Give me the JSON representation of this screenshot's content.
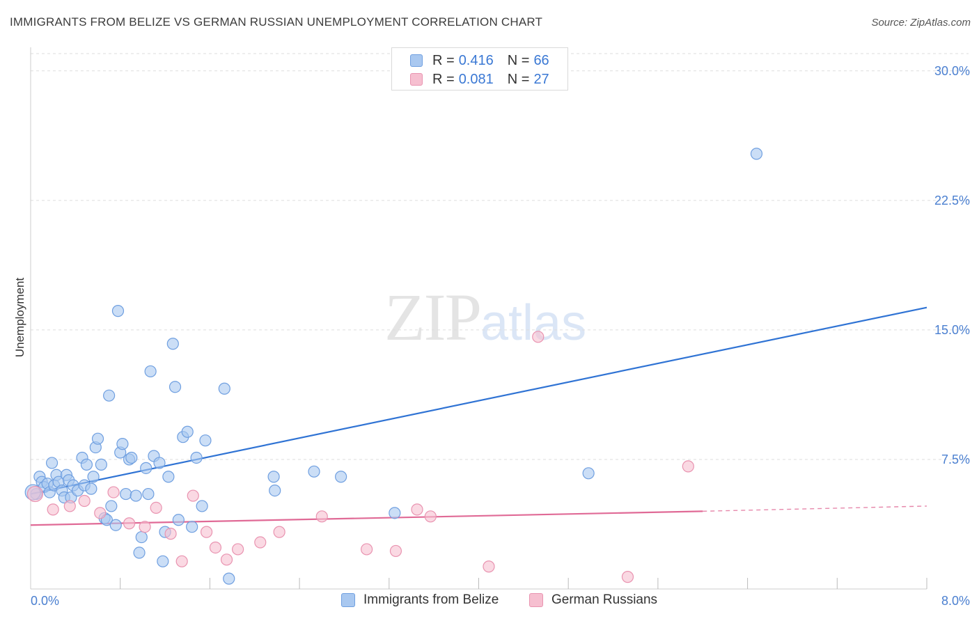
{
  "title": "IMMIGRANTS FROM BELIZE VS GERMAN RUSSIAN UNEMPLOYMENT CORRELATION CHART",
  "source": "Source: ZipAtlas.com",
  "watermark": {
    "zip": "ZIP",
    "atlas": "atlas"
  },
  "colors": {
    "blue_fill": "#a9c8f0",
    "blue_stroke": "#6f9fe0",
    "blue_line": "#2f73d4",
    "pink_fill": "#f6bfd0",
    "pink_stroke": "#e993b0",
    "pink_line": "#e06a96",
    "axis_text": "#4a7fd0",
    "grid": "#dddddd"
  },
  "legend": {
    "rows": [
      {
        "r_label": "R =",
        "r_value": "0.416",
        "n_label": "N =",
        "n_value": "66",
        "color": "blue"
      },
      {
        "r_label": "R =",
        "r_value": "0.081",
        "n_label": "N =",
        "n_value": "27",
        "color": "pink"
      }
    ]
  },
  "bottom_legend": [
    "Immigrants from Belize",
    "German Russians"
  ],
  "chart_data": {
    "type": "scatter",
    "title": "IMMIGRANTS FROM BELIZE VS GERMAN RUSSIAN UNEMPLOYMENT CORRELATION CHART",
    "xlabel": "",
    "ylabel": "Unemployment",
    "xlim": [
      0,
      8.0
    ],
    "ylim": [
      0,
      31
    ],
    "x_tick_labels": [
      "0.0%",
      "8.0%"
    ],
    "y_ticks": [
      7.5,
      15.0,
      22.5,
      30.0
    ],
    "y_tick_labels": [
      "7.5%",
      "15.0%",
      "22.5%",
      "30.0%"
    ],
    "grid": true,
    "series": [
      {
        "name": "Immigrants from Belize",
        "color": "blue",
        "r": 0.416,
        "n": 66,
        "trend": {
          "x0": 0.0,
          "y0": 5.5,
          "x1": 8.0,
          "y1": 16.3
        },
        "points": [
          [
            0.05,
            5.5
          ],
          [
            0.08,
            6.5
          ],
          [
            0.1,
            6.2
          ],
          [
            0.12,
            5.9
          ],
          [
            0.15,
            6.1
          ],
          [
            0.17,
            5.6
          ],
          [
            0.19,
            7.3
          ],
          [
            0.21,
            6.0
          ],
          [
            0.23,
            6.6
          ],
          [
            0.25,
            6.2
          ],
          [
            0.28,
            5.7
          ],
          [
            0.3,
            5.3
          ],
          [
            0.32,
            6.6
          ],
          [
            0.34,
            6.3
          ],
          [
            0.36,
            5.3
          ],
          [
            0.38,
            6.0
          ],
          [
            0.42,
            5.7
          ],
          [
            0.46,
            7.6
          ],
          [
            0.48,
            6.0
          ],
          [
            0.5,
            7.2
          ],
          [
            0.54,
            5.8
          ],
          [
            0.56,
            6.5
          ],
          [
            0.58,
            8.2
          ],
          [
            0.6,
            8.7
          ],
          [
            0.63,
            7.2
          ],
          [
            0.66,
            4.1
          ],
          [
            0.68,
            4.0
          ],
          [
            0.7,
            11.2
          ],
          [
            0.72,
            4.8
          ],
          [
            0.76,
            3.7
          ],
          [
            0.78,
            16.1
          ],
          [
            0.8,
            7.9
          ],
          [
            0.82,
            8.4
          ],
          [
            0.85,
            5.5
          ],
          [
            0.88,
            7.5
          ],
          [
            0.9,
            7.6
          ],
          [
            0.94,
            5.4
          ],
          [
            0.97,
            2.1
          ],
          [
            0.99,
            3.0
          ],
          [
            1.03,
            7.0
          ],
          [
            1.05,
            5.5
          ],
          [
            1.07,
            12.6
          ],
          [
            1.1,
            7.7
          ],
          [
            1.15,
            7.3
          ],
          [
            1.18,
            1.6
          ],
          [
            1.2,
            3.3
          ],
          [
            1.23,
            6.5
          ],
          [
            1.27,
            14.2
          ],
          [
            1.29,
            11.7
          ],
          [
            1.32,
            4.0
          ],
          [
            1.36,
            8.8
          ],
          [
            1.4,
            9.1
          ],
          [
            1.44,
            3.6
          ],
          [
            1.48,
            7.6
          ],
          [
            1.53,
            4.8
          ],
          [
            1.56,
            8.6
          ],
          [
            1.73,
            11.6
          ],
          [
            1.77,
            0.6
          ],
          [
            2.17,
            6.5
          ],
          [
            2.18,
            5.7
          ],
          [
            2.53,
            6.8
          ],
          [
            2.77,
            6.5
          ],
          [
            3.25,
            4.4
          ],
          [
            4.98,
            6.7
          ],
          [
            6.48,
            25.2
          ],
          [
            0.02,
            5.6
          ]
        ]
      },
      {
        "name": "German Russians",
        "color": "pink",
        "r": 0.081,
        "n": 27,
        "trend": {
          "x0": 0.0,
          "y0": 3.7,
          "x1": 6.0,
          "y1": 4.5,
          "x_dashed_end": 8.0,
          "y_dashed_end": 4.8
        },
        "points": [
          [
            0.04,
            5.5
          ],
          [
            0.2,
            4.6
          ],
          [
            0.35,
            4.8
          ],
          [
            0.48,
            5.1
          ],
          [
            0.62,
            4.4
          ],
          [
            0.74,
            5.6
          ],
          [
            0.88,
            3.8
          ],
          [
            1.02,
            3.6
          ],
          [
            1.12,
            4.7
          ],
          [
            1.25,
            3.2
          ],
          [
            1.35,
            1.6
          ],
          [
            1.45,
            5.4
          ],
          [
            1.57,
            3.3
          ],
          [
            1.65,
            2.4
          ],
          [
            1.75,
            1.7
          ],
          [
            1.85,
            2.3
          ],
          [
            2.05,
            2.7
          ],
          [
            2.22,
            3.3
          ],
          [
            2.6,
            4.2
          ],
          [
            3.0,
            2.3
          ],
          [
            3.26,
            2.2
          ],
          [
            3.45,
            4.6
          ],
          [
            3.57,
            4.2
          ],
          [
            4.09,
            1.3
          ],
          [
            4.53,
            14.6
          ],
          [
            5.33,
            0.7
          ],
          [
            5.87,
            7.1
          ]
        ]
      }
    ]
  }
}
